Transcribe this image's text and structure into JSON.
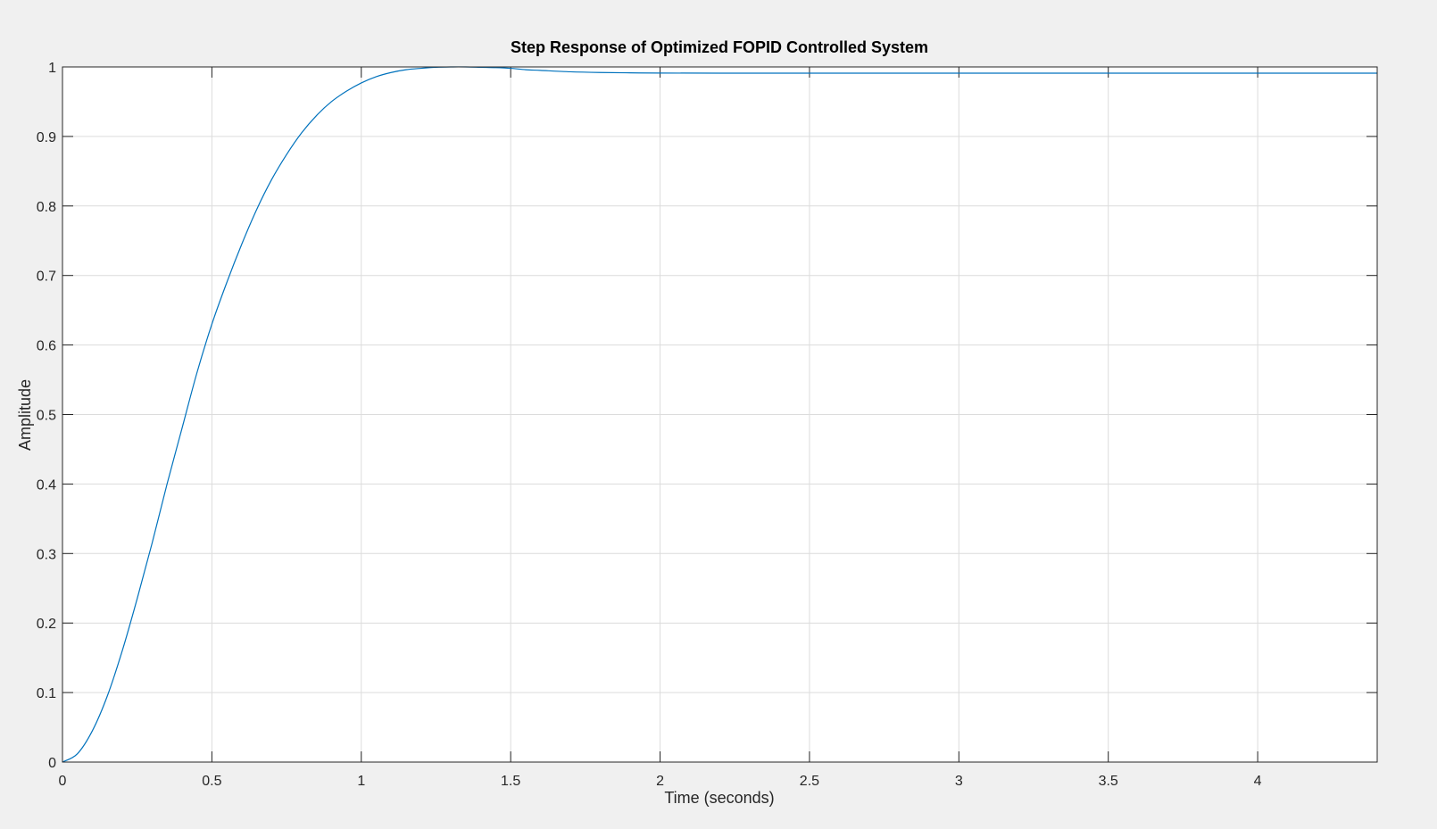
{
  "chart_data": {
    "type": "line",
    "title": "Step Response of Optimized FOPID Controlled System",
    "xlabel": "Time (seconds)",
    "ylabel": "Amplitude",
    "xlim": [
      0,
      4.4
    ],
    "ylim": [
      0,
      1
    ],
    "xticks": [
      0,
      0.5,
      1,
      1.5,
      2,
      2.5,
      3,
      3.5,
      4
    ],
    "xtick_labels": [
      "0",
      "0.5",
      "1",
      "1.5",
      "2",
      "2.5",
      "3",
      "3.5",
      "4"
    ],
    "yticks": [
      0,
      0.1,
      0.2,
      0.3,
      0.4,
      0.5,
      0.6,
      0.7,
      0.8,
      0.9,
      1
    ],
    "ytick_labels": [
      "0",
      "0.1",
      "0.2",
      "0.3",
      "0.4",
      "0.5",
      "0.6",
      "0.7",
      "0.8",
      "0.9",
      "1"
    ],
    "grid": true,
    "reference_line": {
      "y": 1,
      "style": "dotted"
    },
    "series": [
      {
        "color": "#0072bd",
        "x": [
          0,
          0.05,
          0.1,
          0.15,
          0.2,
          0.25,
          0.3,
          0.35,
          0.4,
          0.45,
          0.5,
          0.55,
          0.6,
          0.65,
          0.7,
          0.75,
          0.8,
          0.85,
          0.9,
          0.95,
          1.0,
          1.05,
          1.1,
          1.15,
          1.2,
          1.25,
          1.3,
          1.35,
          1.4,
          1.45,
          1.5,
          1.55,
          1.6,
          1.7,
          1.8,
          1.9,
          2.0,
          2.2,
          2.5,
          3.0,
          3.5,
          4.0,
          4.4
        ],
        "y": [
          0,
          0.012,
          0.045,
          0.095,
          0.16,
          0.235,
          0.315,
          0.4,
          0.48,
          0.56,
          0.63,
          0.69,
          0.745,
          0.795,
          0.838,
          0.874,
          0.905,
          0.93,
          0.95,
          0.965,
          0.977,
          0.986,
          0.992,
          0.996,
          0.998,
          0.9995,
          1.0,
          1.0,
          0.9995,
          0.999,
          0.998,
          0.996,
          0.995,
          0.993,
          0.992,
          0.9915,
          0.9912,
          0.991,
          0.991,
          0.991,
          0.991,
          0.991,
          0.991
        ]
      }
    ]
  }
}
